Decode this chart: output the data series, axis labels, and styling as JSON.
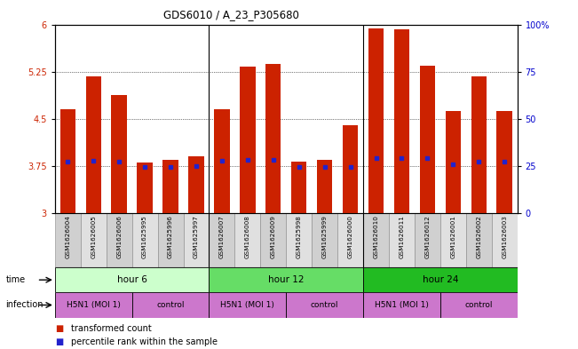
{
  "title": "GDS6010 / A_23_P305680",
  "samples": [
    "GSM1626004",
    "GSM1626005",
    "GSM1626006",
    "GSM1625995",
    "GSM1625996",
    "GSM1625997",
    "GSM1626007",
    "GSM1626008",
    "GSM1626009",
    "GSM1625998",
    "GSM1625999",
    "GSM1626000",
    "GSM1626010",
    "GSM1626011",
    "GSM1626012",
    "GSM1626001",
    "GSM1626002",
    "GSM1626003"
  ],
  "bar_values": [
    4.65,
    5.18,
    4.88,
    3.8,
    3.85,
    3.9,
    4.65,
    5.33,
    5.37,
    3.82,
    3.85,
    4.4,
    5.93,
    5.92,
    5.35,
    4.63,
    5.18,
    4.63
  ],
  "percentile_values": [
    3.82,
    3.83,
    3.82,
    3.74,
    3.74,
    3.75,
    3.83,
    3.85,
    3.85,
    3.74,
    3.74,
    3.74,
    3.87,
    3.87,
    3.87,
    3.78,
    3.82,
    3.82
  ],
  "ylim": [
    3.0,
    6.0
  ],
  "yticks": [
    3.0,
    3.75,
    4.5,
    5.25,
    6.0
  ],
  "ytick_labels": [
    "3",
    "3.75",
    "4.5",
    "5.25",
    "6"
  ],
  "right_yticks": [
    0,
    25,
    50,
    75,
    100
  ],
  "right_ytick_labels": [
    "0",
    "25",
    "50",
    "75",
    "100%"
  ],
  "bar_color": "#cc2200",
  "percentile_color": "#2222cc",
  "bg_color": "#ffffff",
  "tick_label_color_left": "#cc2200",
  "tick_label_color_right": "#0000cc",
  "time_row_colors": [
    "#ccffcc",
    "#66dd66",
    "#22bb22"
  ],
  "infection_row_color": "#cc77cc",
  "time_labels": [
    "hour 6",
    "hour 12",
    "hour 24"
  ],
  "inf_labels": [
    "H5N1 (MOI 1)",
    "control",
    "H5N1 (MOI 1)",
    "control",
    "H5N1 (MOI 1)",
    "control"
  ]
}
